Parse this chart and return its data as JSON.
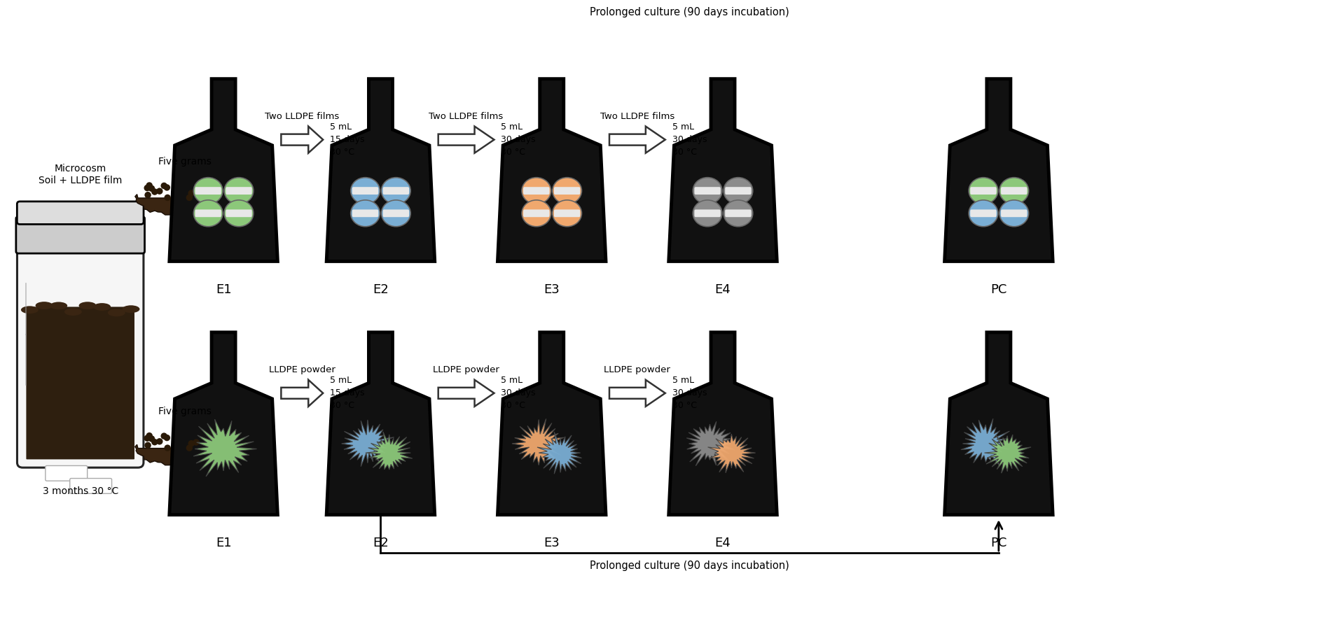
{
  "bg_color": "#ffffff",
  "flask_color": "#111111",
  "top_row_labels": [
    "E1",
    "E2",
    "E3",
    "E4",
    "PC"
  ],
  "top_prolonged_text": "Prolonged culture (90 days incubation)",
  "bottom_prolonged_text": "Prolonged culture (90 days incubation)",
  "arrow_top_labels": [
    "Two LLDPE films",
    "Two LLDPE films",
    "Two LLDPE films"
  ],
  "arrow_bottom_labels": [
    "LLDPE powder",
    "LLDPE powder",
    "LLDPE powder"
  ],
  "top_cond": [
    [
      "5 mL",
      "15 days",
      "30 °C"
    ],
    [
      "5 mL",
      "30 days",
      "30 °C"
    ],
    [
      "5 mL",
      "30 days",
      "30 °C"
    ]
  ],
  "bot_cond": [
    [
      "5 mL",
      "15 days",
      "30 °C"
    ],
    [
      "5 mL",
      "30 days",
      "30 °C"
    ],
    [
      "5 mL",
      "30 days",
      "30 °C"
    ]
  ],
  "green": "#8cc87a",
  "blue": "#7aaed4",
  "orange": "#f0a86e",
  "gray": "#8c8c8c",
  "top_flask_colors": [
    [
      "#8cc87a",
      "#8cc87a",
      "#8cc87a",
      "#8cc87a"
    ],
    [
      "#7aaed4",
      "#7aaed4",
      "#7aaed4",
      "#7aaed4"
    ],
    [
      "#f0a86e",
      "#f0a86e",
      "#f0a86e",
      "#f0a86e"
    ],
    [
      "#8c8c8c",
      "#8c8c8c",
      "#8c8c8c",
      "#8c8c8c"
    ],
    [
      "#8cc87a",
      "#8cc87a",
      "#7aaed4",
      "#7aaed4"
    ]
  ],
  "bot_flask_blobs": [
    [
      [
        "#8cc87a",
        1
      ]
    ],
    [
      [
        "#7aaed4",
        2
      ],
      [
        "#8cc87a",
        3
      ]
    ],
    [
      [
        "#f0a86e",
        4
      ],
      [
        "#7aaed4",
        5
      ]
    ],
    [
      [
        "#8c8c8c",
        6
      ],
      [
        "#f0a86e",
        7
      ]
    ],
    [
      [
        "#7aaed4",
        8
      ],
      [
        "#8cc87a",
        9
      ]
    ]
  ],
  "jar_label": "Microcosm\nSoil + LLDPE film",
  "jar_sublabel": "3 months 30 °C",
  "five_grams": "Five grams"
}
